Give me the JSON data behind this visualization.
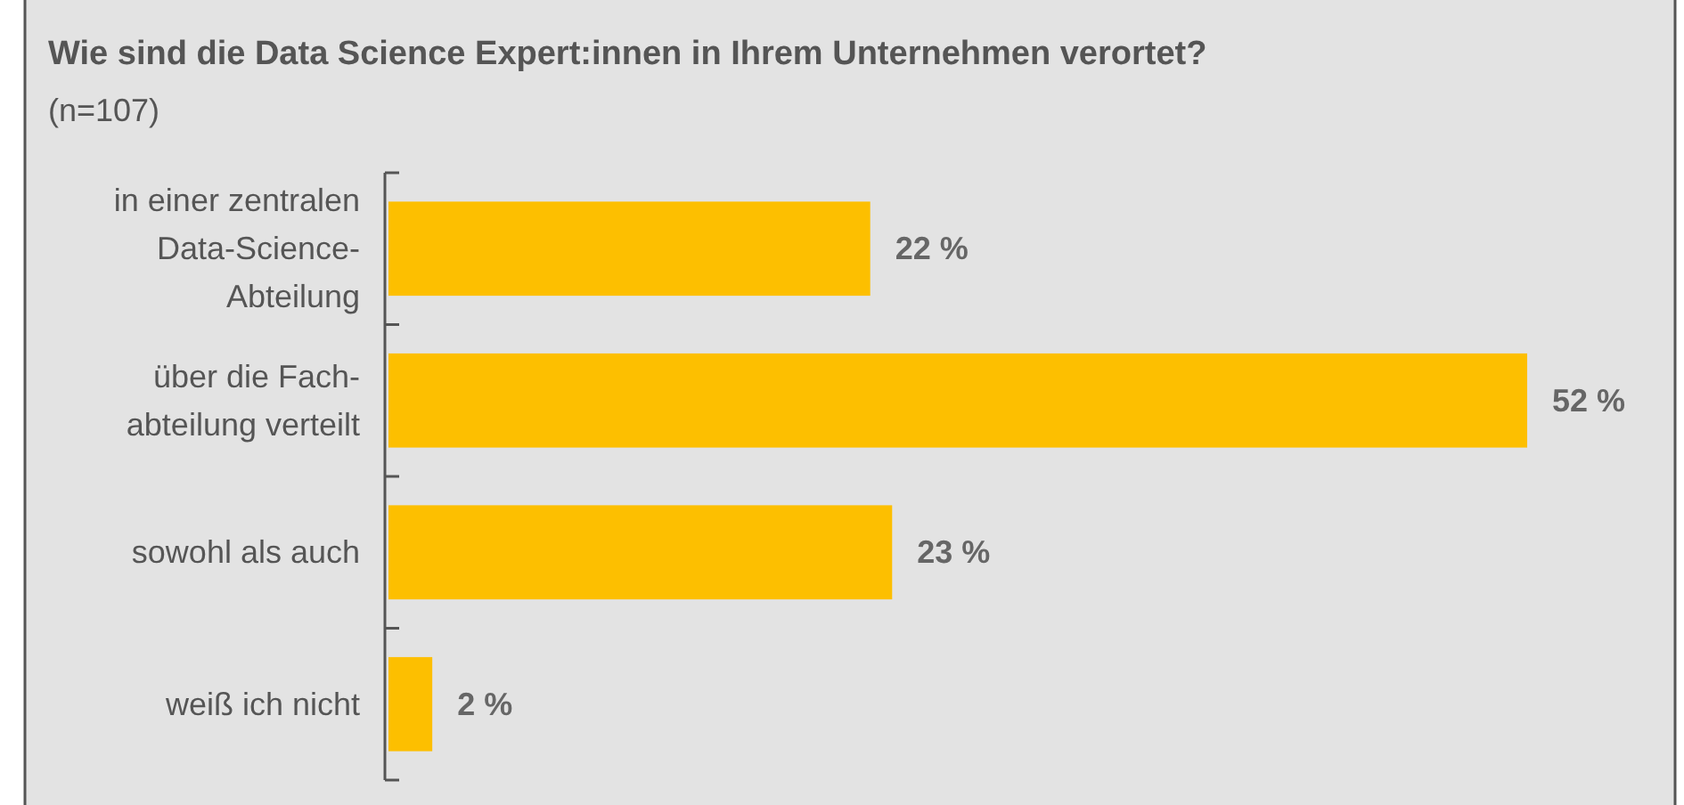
{
  "chart_data": {
    "type": "bar",
    "orientation": "horizontal",
    "title": "Wie sind die Data Science Expert:innen in Ihrem Unternehmen verortet?",
    "subtitle": "(n=107)",
    "categories": [
      "in einer zentralen\nData-Science-\nAbteilung",
      "über die Fach-\nabteilung verteilt",
      "sowohl als auch",
      "weiß ich nicht"
    ],
    "values": [
      22,
      52,
      23,
      2
    ],
    "value_labels": [
      "22 %",
      "52 %",
      "23 %",
      "2 %"
    ],
    "color": "#fdbf00"
  }
}
